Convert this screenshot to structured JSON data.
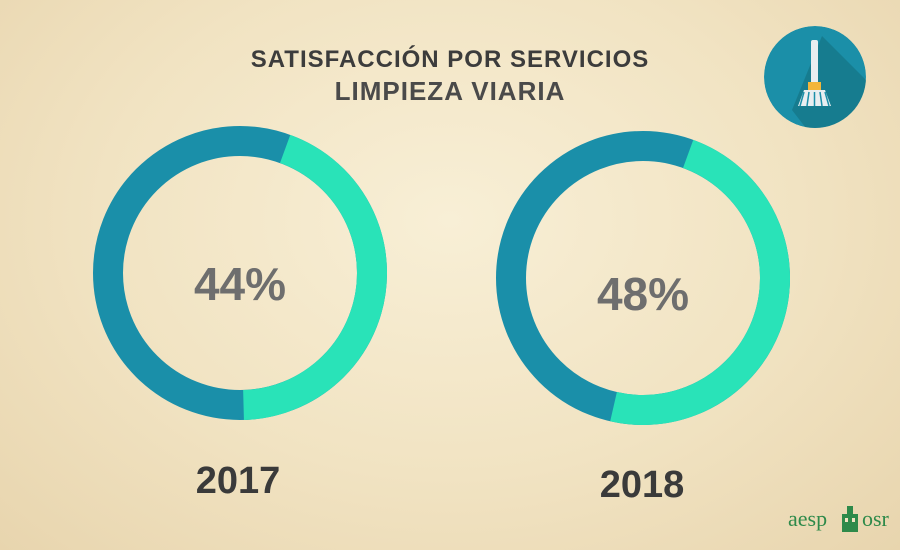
{
  "header": {
    "title": "SATISFACCIÓN POR SERVICIOS",
    "subtitle": "LIMPIEZA VIARIA"
  },
  "icon": {
    "name": "broom-icon",
    "background": "#1b8fa8"
  },
  "colors": {
    "filled": "#29e3b8",
    "remainder": "#1a8fa9",
    "label": "#6e6e6e"
  },
  "chart_data": [
    {
      "type": "pie",
      "variant": "donut",
      "year": "2017",
      "value": 44,
      "label": "44%"
    },
    {
      "type": "pie",
      "variant": "donut",
      "year": "2018",
      "value": 48,
      "label": "48%"
    }
  ],
  "logo": {
    "left": "aesp",
    "right": "osr"
  }
}
